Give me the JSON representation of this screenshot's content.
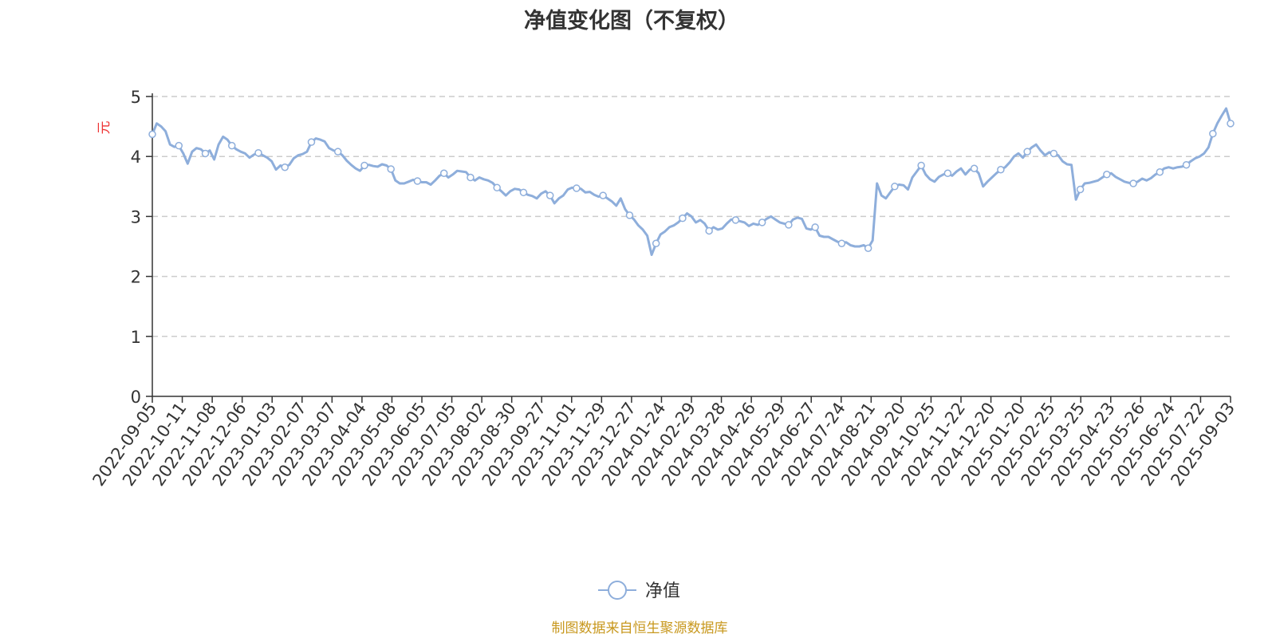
{
  "chart_data": {
    "type": "line",
    "title": "净值变化图（不复权）",
    "y_unit": "元",
    "ylim": [
      0,
      5
    ],
    "y_ticks": [
      "0",
      "1",
      "2",
      "3",
      "4",
      "5"
    ],
    "grid": "horizontal dashed",
    "legend_position": "bottom-center",
    "x_tick_labels": [
      "2022-09-05",
      "2022-10-11",
      "2022-11-08",
      "2022-12-06",
      "2023-01-03",
      "2023-02-07",
      "2023-03-07",
      "2023-04-04",
      "2023-05-08",
      "2023-06-05",
      "2023-07-05",
      "2023-08-02",
      "2023-08-30",
      "2023-09-27",
      "2023-11-01",
      "2023-11-29",
      "2023-12-27",
      "2024-01-24",
      "2024-02-29",
      "2024-03-28",
      "2024-04-26",
      "2024-05-29",
      "2024-06-27",
      "2024-07-24",
      "2024-08-21",
      "2024-09-20",
      "2024-10-25",
      "2024-11-22",
      "2024-12-20",
      "2025-01-20",
      "2025-02-25",
      "2025-03-25",
      "2025-04-23",
      "2025-05-26",
      "2025-06-24",
      "2025-07-22",
      "2025-09-03"
    ],
    "series": [
      {
        "name": "净值",
        "color": "#8eaedb",
        "values": [
          4.37,
          4.55,
          4.5,
          4.42,
          4.2,
          4.16,
          4.18,
          4.05,
          3.88,
          4.08,
          4.14,
          4.12,
          4.05,
          4.1,
          3.95,
          4.2,
          4.33,
          4.28,
          4.18,
          4.12,
          4.08,
          4.05,
          3.98,
          4.03,
          4.06,
          4.02,
          3.98,
          3.92,
          3.78,
          3.85,
          3.82,
          3.86,
          3.97,
          4.02,
          4.04,
          4.08,
          4.24,
          4.3,
          4.28,
          4.25,
          4.14,
          4.1,
          4.08,
          4.02,
          3.93,
          3.86,
          3.8,
          3.76,
          3.85,
          3.86,
          3.84,
          3.83,
          3.87,
          3.85,
          3.79,
          3.6,
          3.55,
          3.55,
          3.58,
          3.61,
          3.59,
          3.57,
          3.57,
          3.53,
          3.6,
          3.68,
          3.72,
          3.65,
          3.7,
          3.76,
          3.75,
          3.74,
          3.65,
          3.6,
          3.65,
          3.62,
          3.6,
          3.56,
          3.48,
          3.42,
          3.35,
          3.42,
          3.46,
          3.45,
          3.4,
          3.36,
          3.34,
          3.3,
          3.38,
          3.42,
          3.35,
          3.22,
          3.3,
          3.35,
          3.45,
          3.48,
          3.47,
          3.46,
          3.4,
          3.41,
          3.36,
          3.33,
          3.35,
          3.3,
          3.25,
          3.18,
          3.3,
          3.12,
          3.02,
          2.95,
          2.85,
          2.78,
          2.68,
          2.36,
          2.55,
          2.7,
          2.75,
          2.82,
          2.85,
          2.9,
          2.97,
          3.05,
          3.0,
          2.9,
          2.94,
          2.88,
          2.76,
          2.82,
          2.78,
          2.8,
          2.88,
          2.95,
          2.94,
          2.92,
          2.9,
          2.84,
          2.88,
          2.86,
          2.9,
          2.96,
          3.0,
          2.95,
          2.9,
          2.88,
          2.86,
          2.95,
          2.98,
          2.96,
          2.8,
          2.78,
          2.82,
          2.68,
          2.66,
          2.66,
          2.62,
          2.58,
          2.55,
          2.57,
          2.52,
          2.5,
          2.5,
          2.52,
          2.47,
          2.6,
          3.55,
          3.35,
          3.3,
          3.4,
          3.5,
          3.53,
          3.52,
          3.45,
          3.65,
          3.75,
          3.85,
          3.7,
          3.62,
          3.58,
          3.66,
          3.7,
          3.72,
          3.68,
          3.75,
          3.8,
          3.7,
          3.78,
          3.8,
          3.72,
          3.5,
          3.58,
          3.65,
          3.72,
          3.78,
          3.82,
          3.9,
          4.0,
          4.05,
          3.98,
          4.08,
          4.15,
          4.2,
          4.1,
          4.02,
          4.07,
          4.05,
          4.02,
          3.92,
          3.87,
          3.86,
          3.28,
          3.45,
          3.55,
          3.56,
          3.58,
          3.6,
          3.65,
          3.7,
          3.72,
          3.66,
          3.62,
          3.58,
          3.56,
          3.55,
          3.58,
          3.63,
          3.6,
          3.64,
          3.7,
          3.74,
          3.8,
          3.82,
          3.8,
          3.82,
          3.83,
          3.86,
          3.92,
          3.97,
          4.0,
          4.05,
          4.15,
          4.38,
          4.55,
          4.68,
          4.8,
          4.55
        ],
        "markers_every": 6
      }
    ],
    "source_note": "制图数据来自恒生聚源数据库"
  }
}
